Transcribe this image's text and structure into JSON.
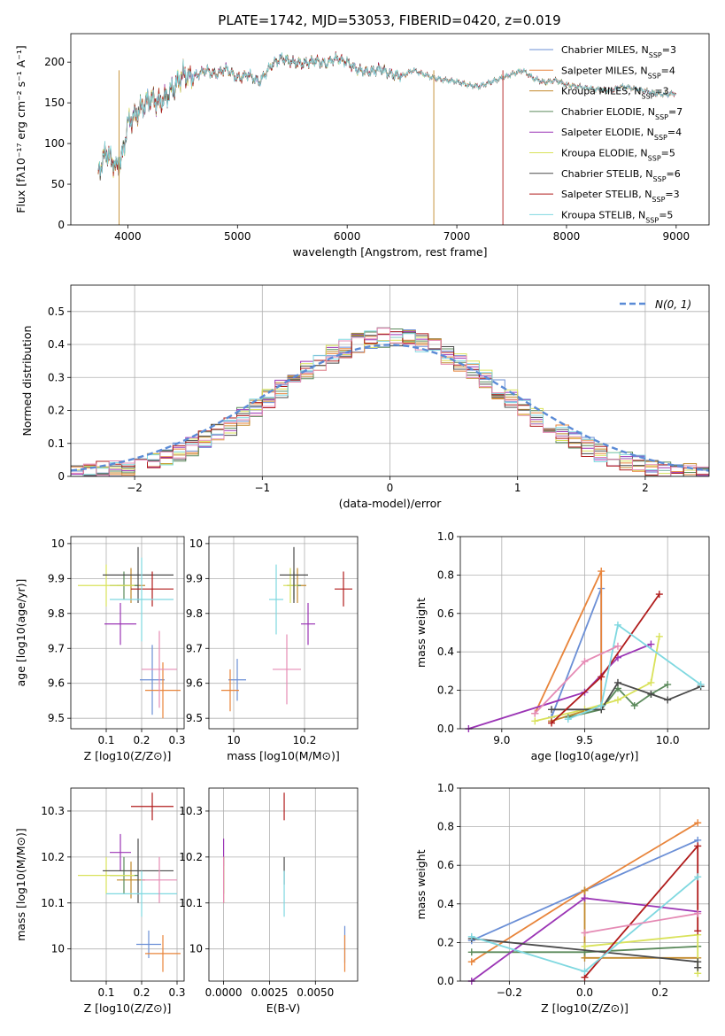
{
  "title": "PLATE=1742, MJD=53053, FIBERID=0420, z=0.019",
  "models": [
    {
      "name": "Chabrier MILES, N",
      "sub": "SSP",
      "n": "=3",
      "color": "#6b8fd6"
    },
    {
      "name": "Salpeter MILES, N",
      "sub": "SSP",
      "n": "=4",
      "color": "#e8843a"
    },
    {
      "name": "Kroupa MILES, N",
      "sub": "SSP",
      "n": "=3",
      "color": "#c28a2c"
    },
    {
      "name": "Chabrier ELODIE, N",
      "sub": "SSP",
      "n": "=7",
      "color": "#5b8a5b"
    },
    {
      "name": "Salpeter ELODIE, N",
      "sub": "SSP",
      "n": "=4",
      "color": "#9b35b5"
    },
    {
      "name": "Kroupa ELODIE, N",
      "sub": "SSP",
      "n": "=5",
      "color": "#d9e25a"
    },
    {
      "name": "Chabrier STELIB, N",
      "sub": "SSP",
      "n": "=6",
      "color": "#4a4a4a"
    },
    {
      "name": "Salpeter STELIB, N",
      "sub": "SSP",
      "n": "=3",
      "color": "#b01c1c"
    },
    {
      "name": "Kroupa STELIB, N",
      "sub": "SSP",
      "n": "=5",
      "color": "#7fd8e0"
    }
  ],
  "chart_data": [
    {
      "type": "line",
      "id": "spectrum",
      "xlabel": "wavelength [Angstrom, rest frame]",
      "ylabel": "Flux [fλ10⁻¹⁷ erg cm⁻² s⁻¹ A⁻¹]",
      "xlim": [
        3480,
        9300
      ],
      "ylim": [
        0,
        235
      ],
      "xticks": [
        4000,
        5000,
        6000,
        7000,
        8000,
        9000
      ],
      "yticks": [
        0,
        50,
        100,
        150,
        200
      ],
      "x": [
        3730,
        3800,
        3850,
        3900,
        3950,
        4000,
        4100,
        4200,
        4300,
        4400,
        4500,
        4600,
        4700,
        4800,
        4900,
        5000,
        5100,
        5200,
        5300,
        5400,
        5500,
        5600,
        5700,
        5800,
        5900,
        6000,
        6100,
        6200,
        6300,
        6400,
        6500,
        6600,
        6700,
        6800,
        6900,
        7000,
        7100,
        7200,
        7300,
        7400,
        7500,
        7600,
        7700,
        7800,
        7900,
        8000,
        8100,
        8200,
        8300,
        8400,
        8500,
        8600,
        8700,
        8800,
        8900,
        9000
      ],
      "flux": [
        65,
        90,
        80,
        70,
        85,
        125,
        140,
        155,
        150,
        165,
        185,
        182,
        190,
        185,
        192,
        180,
        185,
        175,
        195,
        205,
        200,
        198,
        202,
        198,
        205,
        200,
        190,
        188,
        192,
        185,
        183,
        190,
        185,
        180,
        178,
        176,
        172,
        170,
        175,
        180,
        185,
        190,
        180,
        175,
        178,
        172,
        170,
        168,
        166,
        165,
        170,
        168,
        165,
        162,
        160,
        162
      ],
      "grid": false,
      "legend": "upper right"
    },
    {
      "type": "histogram",
      "id": "residuals",
      "xlabel": "(data-model)/error",
      "ylabel": "Normed distribution",
      "xlim": [
        -2.5,
        2.5
      ],
      "ylim": [
        0,
        0.58
      ],
      "xticks": [
        -2,
        -1,
        0,
        1,
        2
      ],
      "yticks": [
        0,
        0.1,
        0.2,
        0.3,
        0.4,
        0.5
      ],
      "reference": "N(0, 1)",
      "grid": true,
      "legend": "upper right"
    },
    {
      "type": "scatter",
      "id": "age-vs-Z",
      "xlabel": "Z [log10(Z/Z⊙)]",
      "ylabel": "age [log10(age/yr)]",
      "xlim": [
        0.0,
        0.32
      ],
      "ylim": [
        9.47,
        10.02
      ],
      "xticks": [
        0.1,
        0.2,
        0.3
      ],
      "yticks": [
        9.5,
        9.6,
        9.7,
        9.8,
        9.9,
        10.0
      ],
      "points": [
        {
          "x": 0.23,
          "y": 9.61,
          "xerr": 0.035,
          "yerr": 0.1
        },
        {
          "x": 0.26,
          "y": 9.58,
          "xerr": 0.05,
          "yerr": 0.08
        },
        {
          "x": 0.17,
          "y": 9.88,
          "xerr": 0.04,
          "yerr": 0.05
        },
        {
          "x": 0.15,
          "y": 9.88,
          "xerr": 0.04,
          "yerr": 0.04
        },
        {
          "x": 0.14,
          "y": 9.77,
          "xerr": 0.045,
          "yerr": 0.06
        },
        {
          "x": 0.1,
          "y": 9.88,
          "xerr": 0.08,
          "yerr": 0.06
        },
        {
          "x": 0.19,
          "y": 9.91,
          "xerr": 0.1,
          "yerr": 0.08
        },
        {
          "x": 0.23,
          "y": 9.87,
          "xerr": 0.06,
          "yerr": 0.05
        },
        {
          "x": 0.2,
          "y": 9.84,
          "xerr": 0.09,
          "yerr": 0.12
        },
        {
          "x": 0.25,
          "y": 9.64,
          "xerr": 0.05,
          "yerr": 0.11
        }
      ]
    },
    {
      "type": "scatter",
      "id": "age-vs-mass",
      "xlabel": "mass [log10(M/M⊙)]",
      "ylabel": "",
      "xlim": [
        9.93,
        10.35
      ],
      "ylim": [
        9.47,
        10.02
      ],
      "xticks": [
        10.0,
        10.2
      ],
      "yticks": [
        9.5,
        9.6,
        9.7,
        9.8,
        9.9,
        10.0
      ],
      "points": [
        {
          "x": 10.01,
          "y": 9.61,
          "xerr": 0.025,
          "yerr": 0.06
        },
        {
          "x": 9.99,
          "y": 9.58,
          "xerr": 0.025,
          "yerr": 0.06
        },
        {
          "x": 10.18,
          "y": 9.88,
          "xerr": 0.025,
          "yerr": 0.05
        },
        {
          "x": 10.17,
          "y": 9.88,
          "xerr": 0.02,
          "yerr": 0.04
        },
        {
          "x": 10.21,
          "y": 9.77,
          "xerr": 0.02,
          "yerr": 0.06
        },
        {
          "x": 10.16,
          "y": 9.88,
          "xerr": 0.02,
          "yerr": 0.05
        },
        {
          "x": 10.17,
          "y": 9.91,
          "xerr": 0.04,
          "yerr": 0.08
        },
        {
          "x": 10.31,
          "y": 9.87,
          "xerr": 0.025,
          "yerr": 0.05
        },
        {
          "x": 10.12,
          "y": 9.84,
          "xerr": 0.02,
          "yerr": 0.1
        },
        {
          "x": 10.15,
          "y": 9.64,
          "xerr": 0.04,
          "yerr": 0.1
        }
      ]
    },
    {
      "type": "line",
      "id": "weight-vs-age",
      "xlabel": "age [log10(age/yr)]",
      "ylabel": "mass weight",
      "xlim": [
        8.75,
        10.25
      ],
      "ylim": [
        0,
        1.0
      ],
      "xticks": [
        9.0,
        9.5,
        10.0
      ],
      "yticks": [
        0.0,
        0.2,
        0.4,
        0.6,
        0.8,
        1.0
      ],
      "series": [
        {
          "x": [
            9.3,
            9.6,
            9.6
          ],
          "y": [
            0.06,
            0.73,
            0.1
          ]
        },
        {
          "x": [
            9.2,
            9.6,
            9.6
          ],
          "y": [
            0.08,
            0.82,
            0.1
          ]
        },
        {
          "x": [
            9.3,
            9.6
          ],
          "y": [
            0.04,
            0.12
          ]
        },
        {
          "x": [
            9.4,
            9.6,
            9.7,
            9.8,
            9.9,
            10.0
          ],
          "y": [
            0.06,
            0.1,
            0.21,
            0.12,
            0.18,
            0.23
          ]
        },
        {
          "x": [
            8.8,
            9.5,
            9.7,
            9.9
          ],
          "y": [
            0.0,
            0.19,
            0.37,
            0.44
          ]
        },
        {
          "x": [
            9.2,
            9.5,
            9.7,
            9.9,
            9.95
          ],
          "y": [
            0.04,
            0.1,
            0.15,
            0.24,
            0.48
          ]
        },
        {
          "x": [
            9.3,
            9.6,
            9.7,
            9.9,
            10.0,
            10.2
          ],
          "y": [
            0.1,
            0.1,
            0.24,
            0.18,
            0.15,
            0.22
          ]
        },
        {
          "x": [
            9.3,
            9.6,
            9.95
          ],
          "y": [
            0.03,
            0.27,
            0.7
          ]
        },
        {
          "x": [
            9.4,
            9.6,
            9.7,
            10.2
          ],
          "y": [
            0.05,
            0.12,
            0.54,
            0.23
          ]
        },
        {
          "x": [
            9.2,
            9.5,
            9.7
          ],
          "y": [
            0.08,
            0.35,
            0.43
          ]
        }
      ]
    },
    {
      "type": "scatter",
      "id": "mass-vs-Z",
      "xlabel": "Z [log10(Z/Z⊙)]",
      "ylabel": "mass [log10(M/M⊙)]",
      "xlim": [
        0.0,
        0.32
      ],
      "ylim": [
        9.93,
        10.35
      ],
      "xticks": [
        0.1,
        0.2,
        0.3
      ],
      "yticks": [
        10.0,
        10.1,
        10.2,
        10.3
      ],
      "points": [
        {
          "x": 0.22,
          "y": 10.01,
          "xerr": 0.035,
          "yerr": 0.03
        },
        {
          "x": 0.26,
          "y": 9.99,
          "xerr": 0.05,
          "yerr": 0.04
        },
        {
          "x": 0.17,
          "y": 10.15,
          "xerr": 0.04,
          "yerr": 0.04
        },
        {
          "x": 0.15,
          "y": 10.16,
          "xerr": 0.04,
          "yerr": 0.04
        },
        {
          "x": 0.14,
          "y": 10.21,
          "xerr": 0.03,
          "yerr": 0.04
        },
        {
          "x": 0.1,
          "y": 10.16,
          "xerr": 0.08,
          "yerr": 0.04
        },
        {
          "x": 0.19,
          "y": 10.17,
          "xerr": 0.1,
          "yerr": 0.07
        },
        {
          "x": 0.23,
          "y": 10.31,
          "xerr": 0.06,
          "yerr": 0.03
        },
        {
          "x": 0.2,
          "y": 10.12,
          "xerr": 0.1,
          "yerr": 0.05
        },
        {
          "x": 0.25,
          "y": 10.15,
          "xerr": 0.05,
          "yerr": 0.05
        }
      ]
    },
    {
      "type": "scatter",
      "id": "mass-vs-EBV",
      "xlabel": "E(B-V)",
      "ylabel": "",
      "xlim": [
        -0.0008,
        0.0073
      ],
      "ylim": [
        9.93,
        10.35
      ],
      "xticks": [
        0.0,
        0.0025,
        0.005
      ],
      "yticks": [
        10.0,
        10.1,
        10.2,
        10.3
      ],
      "points": [
        {
          "x": 0.0066,
          "y": 10.01,
          "yerr": 0.04
        },
        {
          "x": 0.0066,
          "y": 9.99,
          "yerr": 0.04
        },
        {
          "x": 0.0,
          "y": 10.15,
          "yerr": 0.05
        },
        {
          "x": 0.0,
          "y": 10.16,
          "yerr": 0.04
        },
        {
          "x": 0.0,
          "y": 10.21,
          "yerr": 0.03
        },
        {
          "x": 0.0,
          "y": 10.16,
          "yerr": 0.04
        },
        {
          "x": 0.0033,
          "y": 10.17,
          "yerr": 0.03
        },
        {
          "x": 0.0033,
          "y": 10.31,
          "yerr": 0.03
        },
        {
          "x": 0.0033,
          "y": 10.12,
          "yerr": 0.05
        },
        {
          "x": 0.0,
          "y": 10.15,
          "yerr": 0.05
        }
      ]
    },
    {
      "type": "line",
      "id": "weight-vs-Z",
      "xlabel": "Z [log10(Z/Z⊙)]",
      "ylabel": "mass weight",
      "xlim": [
        -0.33,
        0.33
      ],
      "ylim": [
        0,
        1.0
      ],
      "xticks": [
        -0.2,
        0.0,
        0.2
      ],
      "yticks": [
        0.0,
        0.2,
        0.4,
        0.6,
        0.8,
        1.0
      ],
      "series": [
        {
          "x": [
            -0.3,
            0.0,
            0.3
          ],
          "y": [
            0.21,
            0.47,
            0.73
          ]
        },
        {
          "x": [
            -0.3,
            0.0,
            0.3
          ],
          "y": [
            0.1,
            0.47,
            0.82
          ]
        },
        {
          "x": [
            0.0,
            0.0,
            0.3
          ],
          "y": [
            0.47,
            0.12,
            0.12
          ]
        },
        {
          "x": [
            -0.3,
            0.0,
            0.3
          ],
          "y": [
            0.15,
            0.15,
            0.18
          ]
        },
        {
          "x": [
            -0.3,
            0.0,
            0.3
          ],
          "y": [
            0.0,
            0.43,
            0.36
          ]
        },
        {
          "x": [
            0.0,
            0.3,
            0.3
          ],
          "y": [
            0.18,
            0.24,
            0.04
          ]
        },
        {
          "x": [
            -0.3,
            0.3,
            0.3
          ],
          "y": [
            0.22,
            0.1,
            0.07
          ]
        },
        {
          "x": [
            0.0,
            0.3,
            0.3
          ],
          "y": [
            0.02,
            0.7,
            0.26
          ]
        },
        {
          "x": [
            -0.3,
            0.0,
            0.3
          ],
          "y": [
            0.23,
            0.05,
            0.54
          ]
        },
        {
          "x": [
            0.0,
            0.3
          ],
          "y": [
            0.25,
            0.35
          ]
        }
      ]
    }
  ]
}
